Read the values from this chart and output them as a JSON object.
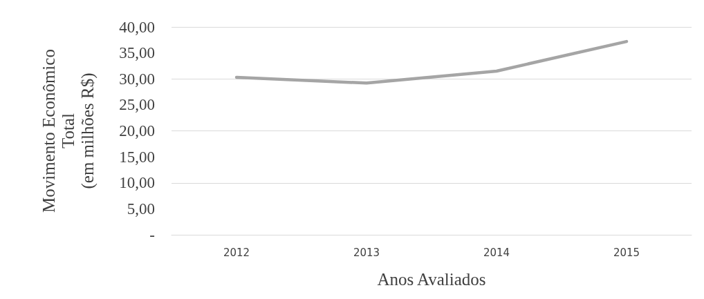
{
  "chart_data": {
    "type": "line",
    "xlabel": "Anos Avaliados",
    "ylabel": "Movimento Econômico\nTotal\n(em milhões R$)",
    "categories": [
      "2012",
      "2013",
      "2014",
      "2015"
    ],
    "series": [
      {
        "color": "#a5a5a5",
        "values": [
          30.3,
          29.2,
          31.5,
          37.2
        ]
      }
    ],
    "ylim": [
      0,
      40
    ],
    "yticks": [
      {
        "value": 0,
        "label": "-"
      },
      {
        "value": 5,
        "label": "5,00"
      },
      {
        "value": 10,
        "label": "10,00"
      },
      {
        "value": 15,
        "label": "15,00"
      },
      {
        "value": 20,
        "label": "20,00"
      },
      {
        "value": 25,
        "label": "25,00"
      },
      {
        "value": 30,
        "label": "30,00"
      },
      {
        "value": 35,
        "label": "35,00"
      },
      {
        "value": 40,
        "label": "40,00"
      }
    ],
    "grid": "y",
    "marker": "none",
    "line_style": "solid"
  }
}
